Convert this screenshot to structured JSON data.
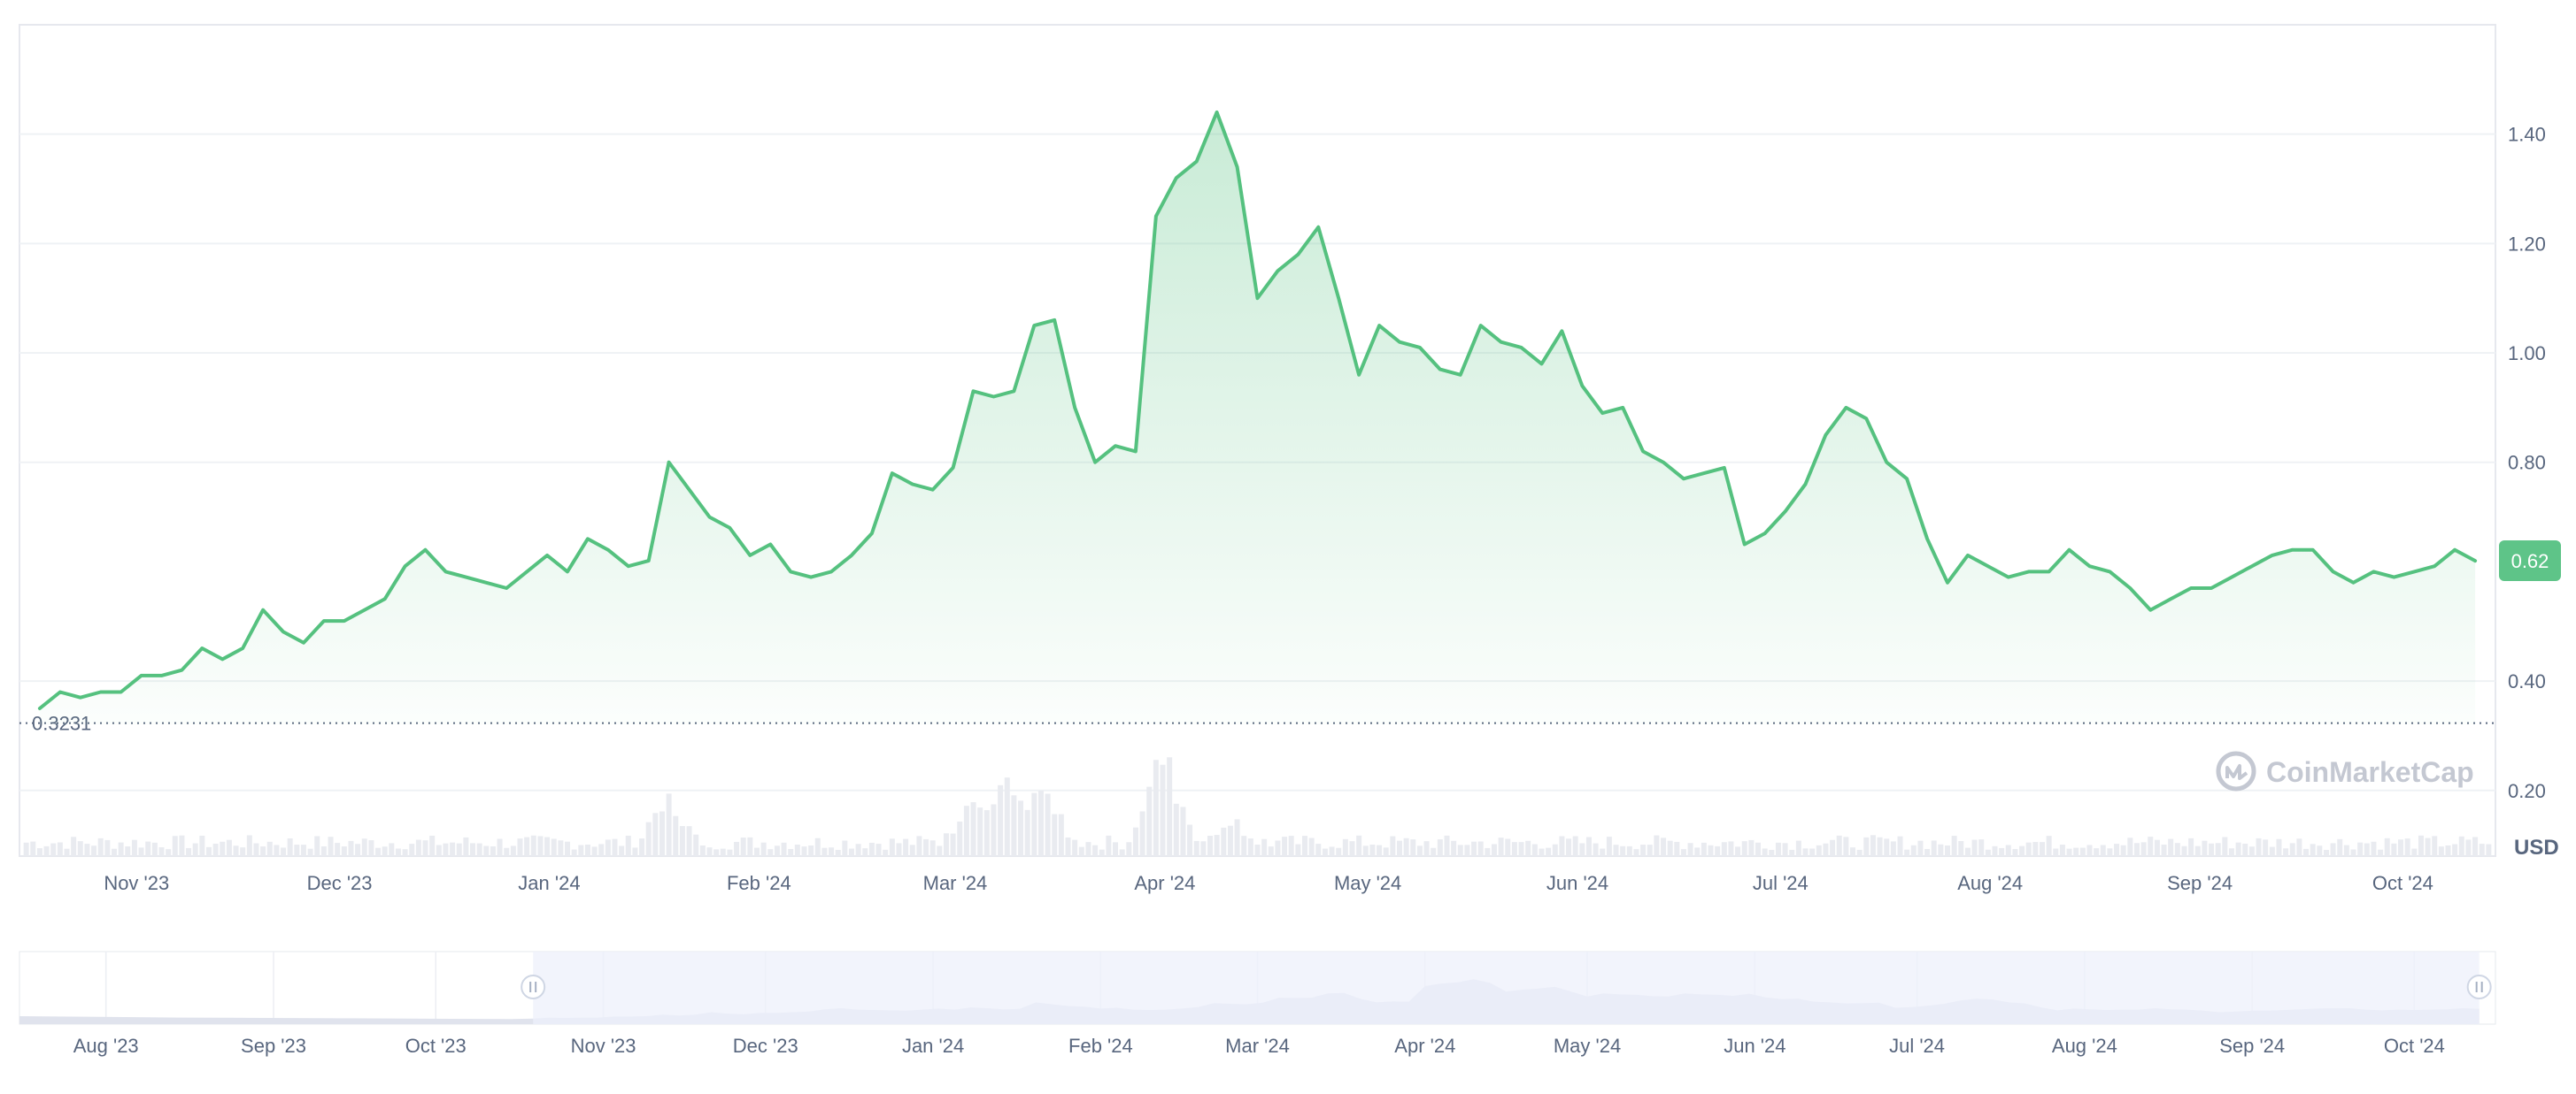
{
  "chart_data": {
    "type": "line",
    "title": "",
    "xlabel": "",
    "ylabel": "",
    "currency_label": "USD",
    "watermark": "CoinMarketCap",
    "current_price_label": "0.62",
    "start_price_label": "0.3231",
    "start_price": 0.3231,
    "ylim": [
      0.08,
      1.6
    ],
    "y_ticks": [
      {
        "value": 1.4,
        "label": "1.40"
      },
      {
        "value": 1.2,
        "label": "1.20"
      },
      {
        "value": 1.0,
        "label": "1.00"
      },
      {
        "value": 0.8,
        "label": "0.80"
      },
      {
        "value": 0.4,
        "label": "0.40"
      },
      {
        "value": 0.2,
        "label": "0.20"
      }
    ],
    "x_ticks": [
      "Nov '23",
      "Dec '23",
      "Jan '24",
      "Feb '24",
      "Mar '24",
      "Apr '24",
      "May '24",
      "Jun '24",
      "Jul '24",
      "Aug '24",
      "Sep '24",
      "Oct '24"
    ],
    "x_tick_dates": [
      "2023-11-01",
      "2023-12-01",
      "2024-01-01",
      "2024-02-01",
      "2024-03-01",
      "2024-04-01",
      "2024-05-01",
      "2024-06-01",
      "2024-07-01",
      "2024-08-01",
      "2024-09-01",
      "2024-10-01"
    ],
    "series": [
      {
        "values": [
          [
            "2023-10-19",
            0.35
          ],
          [
            "2023-10-22",
            0.38
          ],
          [
            "2023-10-25",
            0.37
          ],
          [
            "2023-10-28",
            0.38
          ],
          [
            "2023-10-31",
            0.38
          ],
          [
            "2023-11-03",
            0.41
          ],
          [
            "2023-11-06",
            0.41
          ],
          [
            "2023-11-09",
            0.42
          ],
          [
            "2023-11-12",
            0.46
          ],
          [
            "2023-11-15",
            0.44
          ],
          [
            "2023-11-18",
            0.46
          ],
          [
            "2023-11-21",
            0.53
          ],
          [
            "2023-11-24",
            0.49
          ],
          [
            "2023-11-27",
            0.47
          ],
          [
            "2023-11-30",
            0.51
          ],
          [
            "2023-12-03",
            0.51
          ],
          [
            "2023-12-06",
            0.53
          ],
          [
            "2023-12-09",
            0.55
          ],
          [
            "2023-12-12",
            0.61
          ],
          [
            "2023-12-15",
            0.64
          ],
          [
            "2023-12-18",
            0.6
          ],
          [
            "2023-12-21",
            0.59
          ],
          [
            "2023-12-24",
            0.58
          ],
          [
            "2023-12-27",
            0.57
          ],
          [
            "2023-12-30",
            0.6
          ],
          [
            "2024-01-02",
            0.63
          ],
          [
            "2024-01-05",
            0.6
          ],
          [
            "2024-01-08",
            0.66
          ],
          [
            "2024-01-11",
            0.64
          ],
          [
            "2024-01-14",
            0.61
          ],
          [
            "2024-01-17",
            0.62
          ],
          [
            "2024-01-20",
            0.8
          ],
          [
            "2024-01-23",
            0.75
          ],
          [
            "2024-01-26",
            0.7
          ],
          [
            "2024-01-29",
            0.68
          ],
          [
            "2024-02-01",
            0.63
          ],
          [
            "2024-02-04",
            0.65
          ],
          [
            "2024-02-07",
            0.6
          ],
          [
            "2024-02-10",
            0.59
          ],
          [
            "2024-02-13",
            0.6
          ],
          [
            "2024-02-16",
            0.63
          ],
          [
            "2024-02-19",
            0.67
          ],
          [
            "2024-02-22",
            0.78
          ],
          [
            "2024-02-25",
            0.76
          ],
          [
            "2024-02-28",
            0.75
          ],
          [
            "2024-03-02",
            0.79
          ],
          [
            "2024-03-05",
            0.93
          ],
          [
            "2024-03-08",
            0.92
          ],
          [
            "2024-03-11",
            0.93
          ],
          [
            "2024-03-14",
            1.05
          ],
          [
            "2024-03-17",
            1.06
          ],
          [
            "2024-03-20",
            0.9
          ],
          [
            "2024-03-23",
            0.8
          ],
          [
            "2024-03-26",
            0.83
          ],
          [
            "2024-03-29",
            0.82
          ],
          [
            "2024-04-01",
            1.25
          ],
          [
            "2024-04-04",
            1.32
          ],
          [
            "2024-04-07",
            1.35
          ],
          [
            "2024-04-10",
            1.44
          ],
          [
            "2024-04-13",
            1.34
          ],
          [
            "2024-04-16",
            1.1
          ],
          [
            "2024-04-19",
            1.15
          ],
          [
            "2024-04-22",
            1.18
          ],
          [
            "2024-04-25",
            1.23
          ],
          [
            "2024-04-28",
            1.1
          ],
          [
            "2024-05-01",
            0.96
          ],
          [
            "2024-05-04",
            1.05
          ],
          [
            "2024-05-07",
            1.02
          ],
          [
            "2024-05-10",
            1.01
          ],
          [
            "2024-05-13",
            0.97
          ],
          [
            "2024-05-16",
            0.96
          ],
          [
            "2024-05-19",
            1.05
          ],
          [
            "2024-05-22",
            1.02
          ],
          [
            "2024-05-25",
            1.01
          ],
          [
            "2024-05-28",
            0.98
          ],
          [
            "2024-05-31",
            1.04
          ],
          [
            "2024-06-03",
            0.94
          ],
          [
            "2024-06-06",
            0.89
          ],
          [
            "2024-06-09",
            0.9
          ],
          [
            "2024-06-12",
            0.82
          ],
          [
            "2024-06-15",
            0.8
          ],
          [
            "2024-06-18",
            0.77
          ],
          [
            "2024-06-21",
            0.78
          ],
          [
            "2024-06-24",
            0.79
          ],
          [
            "2024-06-27",
            0.65
          ],
          [
            "2024-06-30",
            0.67
          ],
          [
            "2024-07-03",
            0.71
          ],
          [
            "2024-07-06",
            0.76
          ],
          [
            "2024-07-09",
            0.85
          ],
          [
            "2024-07-12",
            0.9
          ],
          [
            "2024-07-15",
            0.88
          ],
          [
            "2024-07-18",
            0.8
          ],
          [
            "2024-07-21",
            0.77
          ],
          [
            "2024-07-24",
            0.66
          ],
          [
            "2024-07-27",
            0.58
          ],
          [
            "2024-07-30",
            0.63
          ],
          [
            "2024-08-02",
            0.61
          ],
          [
            "2024-08-05",
            0.59
          ],
          [
            "2024-08-08",
            0.6
          ],
          [
            "2024-08-11",
            0.6
          ],
          [
            "2024-08-14",
            0.64
          ],
          [
            "2024-08-17",
            0.61
          ],
          [
            "2024-08-20",
            0.6
          ],
          [
            "2024-08-23",
            0.57
          ],
          [
            "2024-08-26",
            0.53
          ],
          [
            "2024-08-29",
            0.55
          ],
          [
            "2024-09-01",
            0.57
          ],
          [
            "2024-09-04",
            0.57
          ],
          [
            "2024-09-07",
            0.59
          ],
          [
            "2024-09-10",
            0.61
          ],
          [
            "2024-09-13",
            0.63
          ],
          [
            "2024-09-16",
            0.64
          ],
          [
            "2024-09-19",
            0.64
          ],
          [
            "2024-09-22",
            0.6
          ],
          [
            "2024-09-25",
            0.58
          ],
          [
            "2024-09-28",
            0.6
          ],
          [
            "2024-10-01",
            0.59
          ],
          [
            "2024-10-04",
            0.6
          ],
          [
            "2024-10-07",
            0.61
          ],
          [
            "2024-10-10",
            0.64
          ],
          [
            "2024-10-13",
            0.62
          ]
        ]
      }
    ],
    "volume_peaks": [
      [
        "2024-01-20",
        0.55
      ],
      [
        "2024-03-05",
        0.58
      ],
      [
        "2024-03-10",
        0.72
      ],
      [
        "2024-03-15",
        0.68
      ],
      [
        "2024-04-02",
        1.0
      ],
      [
        "2024-04-12",
        0.4
      ]
    ],
    "navigator": {
      "x_ticks": [
        "Aug '23",
        "Sep '23",
        "Oct '23",
        "Nov '23",
        "Dec '23",
        "Jan '24",
        "Feb '24",
        "Mar '24",
        "Apr '24",
        "May '24",
        "Jun '24",
        "Jul '24",
        "Aug '24",
        "Sep '24",
        "Oct '24"
      ],
      "x_tick_dates": [
        "2023-08-01",
        "2023-09-01",
        "2023-10-01",
        "2023-11-01",
        "2023-12-01",
        "2024-01-01",
        "2024-02-01",
        "2024-03-01",
        "2024-04-01",
        "2024-05-01",
        "2024-06-01",
        "2024-07-01",
        "2024-08-01",
        "2024-09-01",
        "2024-10-01"
      ],
      "range_start": "2023-10-19",
      "range_end": "2024-10-13"
    },
    "colors": {
      "line": "#55c17f",
      "area_top": "#55c17f",
      "badge": "#5ec488",
      "grid": "#eff2f5",
      "axis_text": "#58667e",
      "volume": "#e9ebf0",
      "navigator_fill": "#eef0fb",
      "navigator_area": "#e0e3ed",
      "watermark": "#c4c8d2"
    },
    "grid": true,
    "legend": "none"
  }
}
